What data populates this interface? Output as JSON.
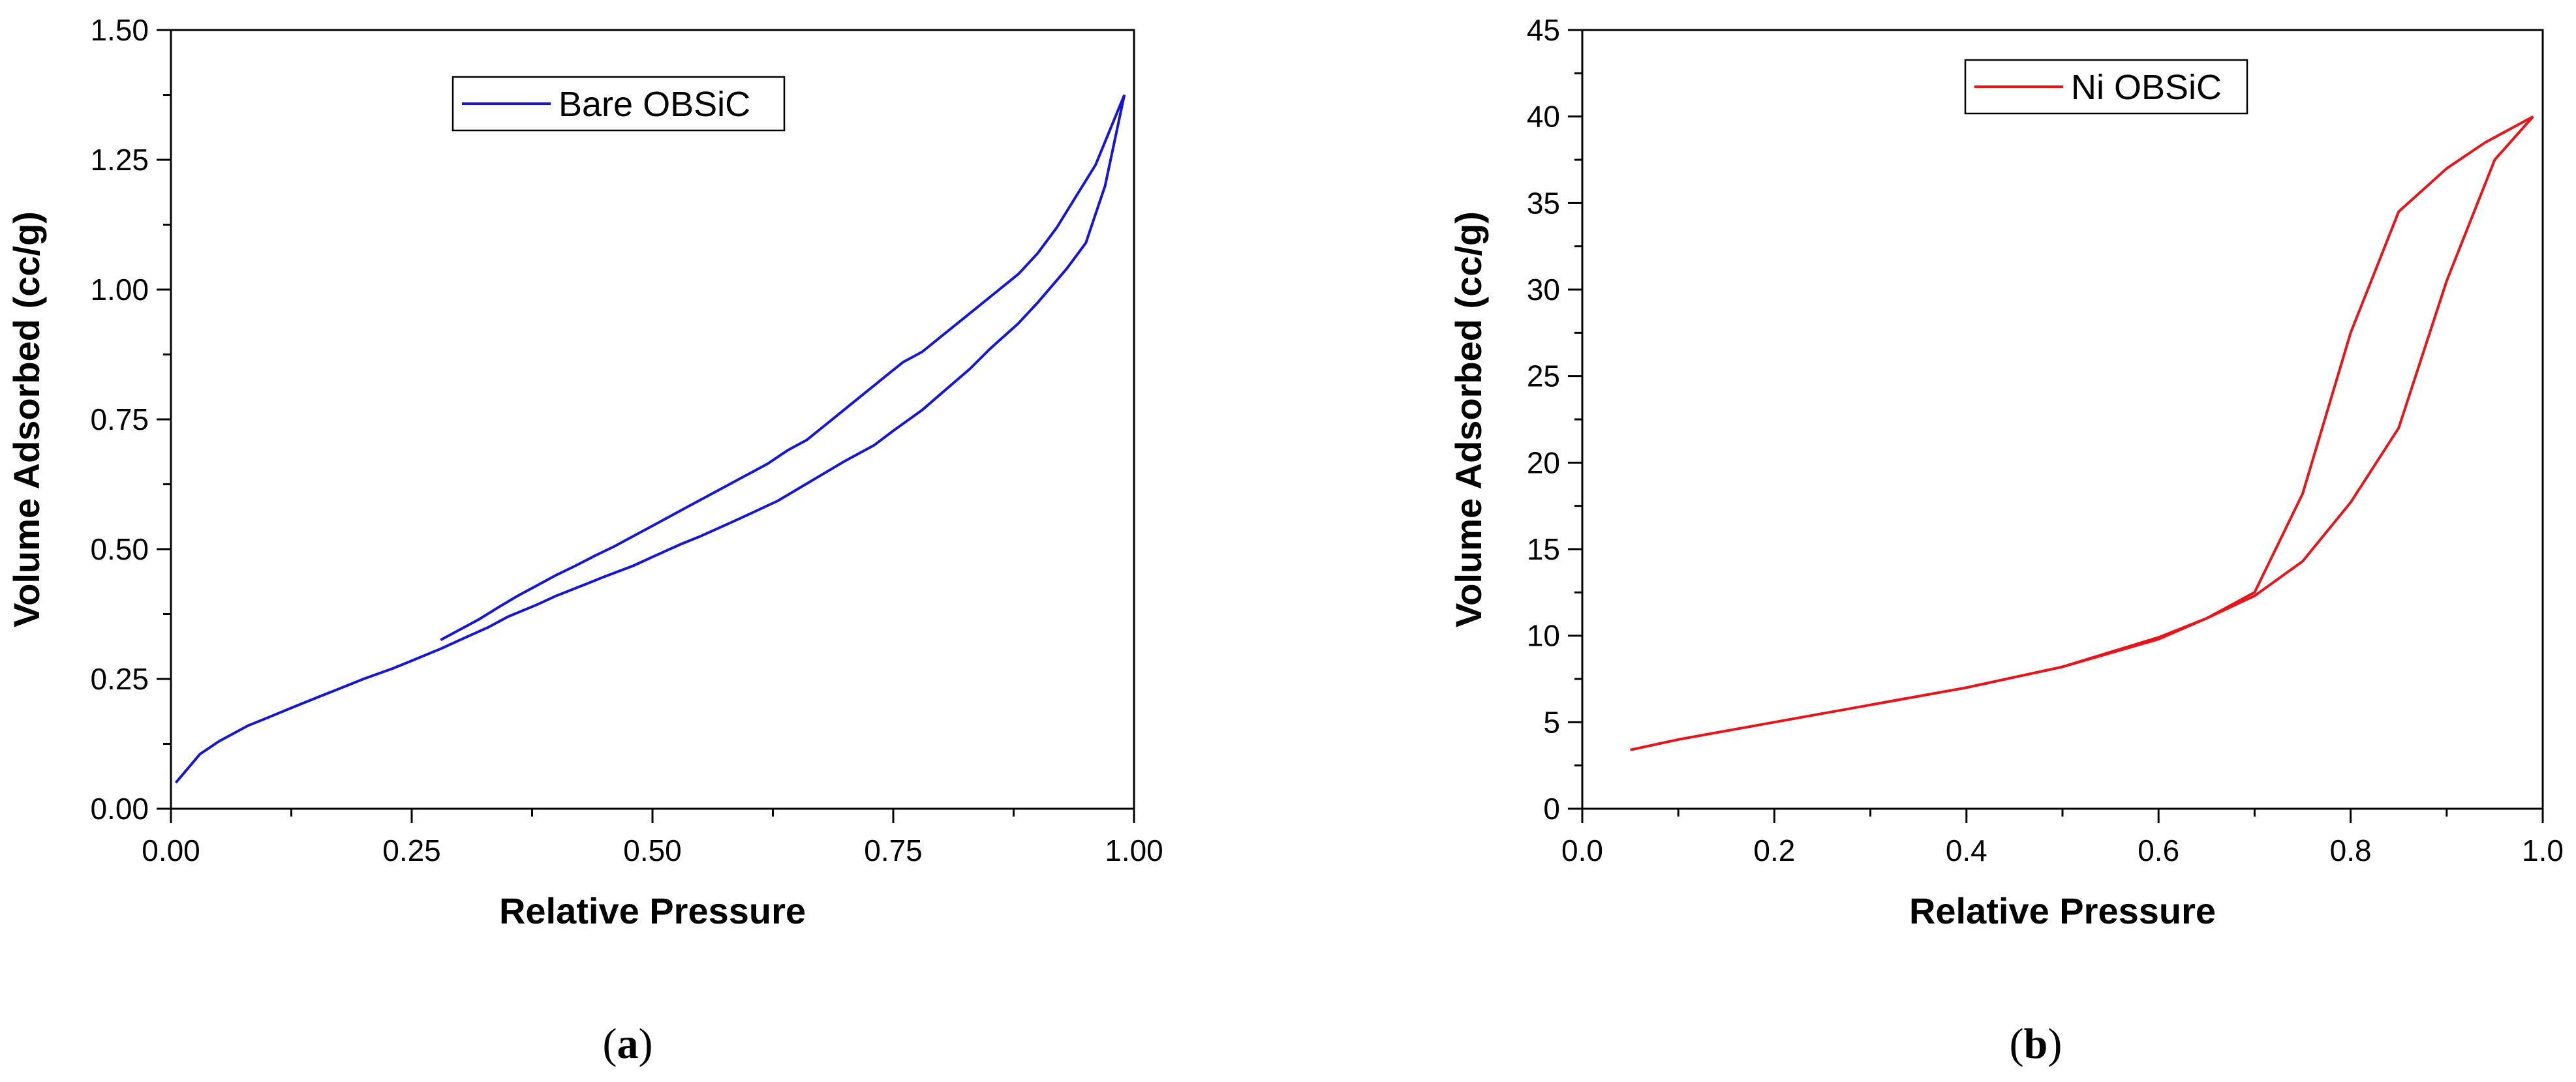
{
  "chart_data": [
    {
      "type": "line",
      "panel_label": "a",
      "xlabel": "Relative Pressure",
      "ylabel": "Volume Adsorbed (cc/g)",
      "xlim": [
        0,
        1
      ],
      "ylim": [
        0,
        1.5
      ],
      "xticks": [
        "0.00",
        "0.25",
        "0.50",
        "0.75",
        "1.00"
      ],
      "yticks": [
        "0.00",
        "0.25",
        "0.50",
        "0.75",
        "1.00",
        "1.25",
        "1.50"
      ],
      "legend": {
        "label": "Bare OBSiC",
        "position": "top-center"
      },
      "color": "#1515d8",
      "series": [
        {
          "x": [
            0.005,
            0.03,
            0.05,
            0.08,
            0.1,
            0.13,
            0.15,
            0.18,
            0.2,
            0.23,
            0.25,
            0.28,
            0.3,
            0.33,
            0.35,
            0.38,
            0.4,
            0.43,
            0.45,
            0.48,
            0.5,
            0.53,
            0.55,
            0.58,
            0.6,
            0.63,
            0.65,
            0.68,
            0.7,
            0.73,
            0.75,
            0.78,
            0.8,
            0.83,
            0.85,
            0.88,
            0.9,
            0.93,
            0.95,
            0.97,
            0.99
          ],
          "y": [
            0.05,
            0.105,
            0.13,
            0.16,
            0.175,
            0.198,
            0.213,
            0.235,
            0.25,
            0.27,
            0.285,
            0.308,
            0.325,
            0.35,
            0.37,
            0.393,
            0.41,
            0.432,
            0.447,
            0.468,
            0.485,
            0.51,
            0.525,
            0.55,
            0.567,
            0.593,
            0.615,
            0.648,
            0.67,
            0.7,
            0.728,
            0.768,
            0.8,
            0.848,
            0.885,
            0.935,
            0.975,
            1.04,
            1.09,
            1.2,
            1.375
          ]
        },
        {
          "x": [
            0.99,
            0.96,
            0.94,
            0.92,
            0.9,
            0.88,
            0.86,
            0.84,
            0.82,
            0.8,
            0.78,
            0.76,
            0.74,
            0.72,
            0.7,
            0.68,
            0.66,
            0.64,
            0.62,
            0.6,
            0.58,
            0.56,
            0.54,
            0.52,
            0.5,
            0.48,
            0.46,
            0.44,
            0.42,
            0.4,
            0.38,
            0.36,
            0.34,
            0.32,
            0.3,
            0.28
          ],
          "y": [
            1.375,
            1.24,
            1.18,
            1.12,
            1.07,
            1.03,
            1.0,
            0.97,
            0.94,
            0.91,
            0.88,
            0.86,
            0.83,
            0.8,
            0.77,
            0.74,
            0.71,
            0.69,
            0.665,
            0.645,
            0.625,
            0.605,
            0.585,
            0.565,
            0.545,
            0.525,
            0.505,
            0.487,
            0.468,
            0.45,
            0.43,
            0.41,
            0.388,
            0.365,
            0.345,
            0.325
          ]
        }
      ],
      "caption": "(a)"
    },
    {
      "type": "line",
      "panel_label": "b",
      "xlabel": "Relative Pressure",
      "ylabel": "Volume Adsorbed (cc/g)",
      "xlim": [
        0,
        1
      ],
      "ylim": [
        0,
        45
      ],
      "xticks": [
        "0.0",
        "0.2",
        "0.4",
        "0.6",
        "0.8",
        "1.0"
      ],
      "yticks": [
        "0",
        "5",
        "10",
        "15",
        "20",
        "25",
        "30",
        "35",
        "40",
        "45"
      ],
      "legend": {
        "label": "Ni OBSiC",
        "position": "top-center"
      },
      "color": "#e8141a",
      "series": [
        {
          "x": [
            0.05,
            0.1,
            0.2,
            0.3,
            0.4,
            0.5,
            0.6,
            0.65,
            0.7,
            0.75,
            0.8,
            0.85,
            0.9,
            0.95,
            0.99
          ],
          "y": [
            3.4,
            4.0,
            5.0,
            6.0,
            7.0,
            8.2,
            9.8,
            11.0,
            12.3,
            14.3,
            17.7,
            22.0,
            30.5,
            37.5,
            40.0
          ]
        },
        {
          "x": [
            0.99,
            0.94,
            0.9,
            0.85,
            0.8,
            0.75,
            0.7,
            0.65,
            0.6,
            0.5,
            0.4,
            0.3
          ],
          "y": [
            40.0,
            38.5,
            37.0,
            34.5,
            27.5,
            18.2,
            12.5,
            11.0,
            9.9,
            8.2,
            7.0,
            6.0
          ]
        }
      ],
      "caption": "(b)"
    }
  ]
}
